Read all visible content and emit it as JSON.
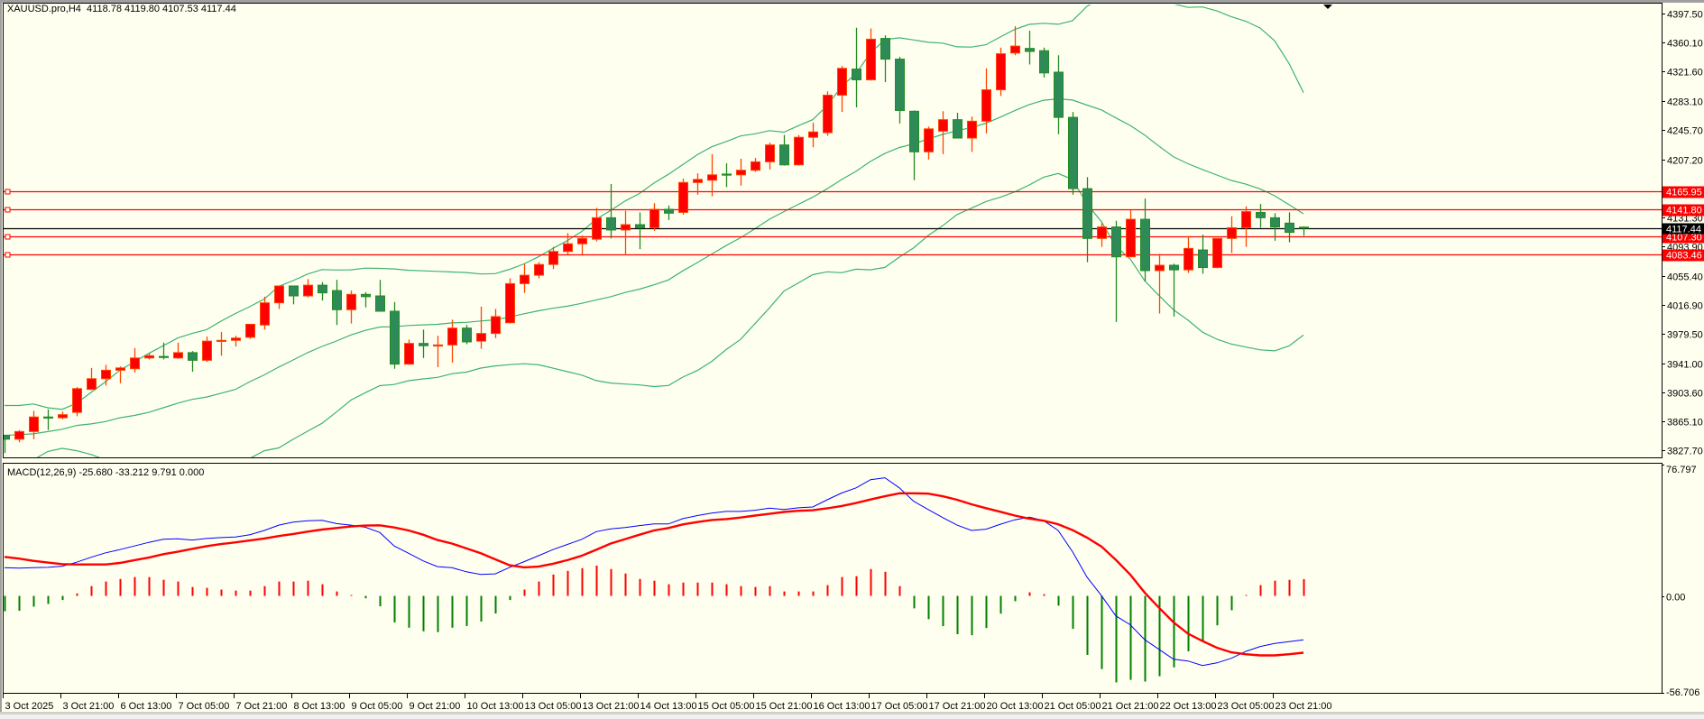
{
  "header": {
    "symbol": "XAUUSD.pro,H4",
    "ohlc": "4118.78 4119.80 4107.53 4117.44"
  },
  "macd_header": "MACD(12,26,9) -25.680 -33.212 9.791 0.000",
  "colors": {
    "background": "#fffff0",
    "bull_body": "#ff0000",
    "bull_outline": "#ff4500",
    "bear_body": "#2e8b57",
    "bear_outline": "#228b22",
    "bollinger": "#3cb371",
    "hline": "#ff0000",
    "current_line": "#000000",
    "macd_main": "#0000ff",
    "macd_signal": "#ff0000",
    "hist_up": "#ff0000",
    "hist_down": "#008000"
  },
  "chart_data": [
    {
      "type": "candlestick",
      "title": "XAUUSD.pro,H4",
      "ylim": [
        3827.7,
        4397.5
      ],
      "y_ticks": [
        "4397.50",
        "4360.10",
        "4321.60",
        "4283.10",
        "4245.70",
        "4207.20",
        "4131.30",
        "4093.90",
        "4055.40",
        "4016.90",
        "3979.50",
        "3941.00",
        "3903.60",
        "3865.10",
        "3827.70"
      ],
      "x_tick_labels": [
        "3 Oct 2025",
        "3 Oct 21:00",
        "6 Oct 13:00",
        "7 Oct 05:00",
        "7 Oct 21:00",
        "8 Oct 13:00",
        "9 Oct 05:00",
        "9 Oct 21:00",
        "10 Oct 13:00",
        "13 Oct 05:00",
        "13 Oct 21:00",
        "14 Oct 13:00",
        "15 Oct 05:00",
        "15 Oct 21:00",
        "16 Oct 13:00",
        "17 Oct 05:00",
        "17 Oct 21:00",
        "20 Oct 13:00",
        "21 Oct 05:00",
        "21 Oct 21:00",
        "22 Oct 13:00",
        "23 Oct 05:00",
        "23 Oct 21:00"
      ],
      "x_tick_every_bars": 4,
      "ohlc": [
        [
          3847,
          3848,
          3824,
          3842
        ],
        [
          3842,
          3854,
          3838,
          3852
        ],
        [
          3852,
          3879,
          3842,
          3871
        ],
        [
          3871,
          3881,
          3854,
          3870
        ],
        [
          3870,
          3878,
          3868,
          3874
        ],
        [
          3877,
          3910,
          3872,
          3908
        ],
        [
          3907,
          3935,
          3906,
          3921
        ],
        [
          3921,
          3939,
          3912,
          3932
        ],
        [
          3932,
          3937,
          3915,
          3935
        ],
        [
          3934,
          3961,
          3929,
          3948
        ],
        [
          3948,
          3954,
          3946,
          3951
        ],
        [
          3950,
          3968,
          3946,
          3949
        ],
        [
          3948,
          3968,
          3947,
          3955
        ],
        [
          3955,
          3957,
          3930,
          3945
        ],
        [
          3945,
          3976,
          3943,
          3970
        ],
        [
          3970,
          3982,
          3951,
          3971
        ],
        [
          3971,
          3977,
          3963,
          3974
        ],
        [
          3975,
          3992,
          3973,
          3992
        ],
        [
          3991,
          4028,
          3985,
          4020
        ],
        [
          4020,
          4042,
          4012,
          4042
        ],
        [
          4042,
          4042,
          4018,
          4029
        ],
        [
          4029,
          4051,
          4027,
          4043
        ],
        [
          4043,
          4047,
          4023,
          4033
        ],
        [
          4036,
          4050,
          3991,
          4011
        ],
        [
          4011,
          4036,
          3993,
          4031
        ],
        [
          4031,
          4034,
          4014,
          4028
        ],
        [
          4029,
          4050,
          4009,
          4009
        ],
        [
          4009,
          4021,
          3934,
          3940
        ],
        [
          3940,
          3972,
          3939,
          3967
        ],
        [
          3967,
          3985,
          3948,
          3964
        ],
        [
          3964,
          3977,
          3936,
          3965
        ],
        [
          3965,
          3998,
          3942,
          3987
        ],
        [
          3987,
          3991,
          3966,
          3969
        ],
        [
          3970,
          4015,
          3960,
          3980
        ],
        [
          3980,
          4012,
          3974,
          4002
        ],
        [
          3994,
          4052,
          3993,
          4045
        ],
        [
          4045,
          4071,
          4033,
          4056
        ],
        [
          4056,
          4073,
          4052,
          4070
        ],
        [
          4070,
          4093,
          4064,
          4087
        ],
        [
          4087,
          4111,
          4083,
          4097
        ],
        [
          4097,
          4108,
          4083,
          4104
        ],
        [
          4103,
          4144,
          4100,
          4131
        ],
        [
          4131,
          4175,
          4104,
          4115
        ],
        [
          4115,
          4140,
          4082,
          4122
        ],
        [
          4122,
          4138,
          4090,
          4118
        ],
        [
          4118,
          4150,
          4114,
          4142
        ],
        [
          4142,
          4147,
          4128,
          4137
        ],
        [
          4138,
          4182,
          4135,
          4177
        ],
        [
          4177,
          4189,
          4161,
          4181
        ],
        [
          4180,
          4214,
          4159,
          4187
        ],
        [
          4188,
          4202,
          4171,
          4187
        ],
        [
          4187,
          4208,
          4173,
          4193
        ],
        [
          4193,
          4209,
          4191,
          4204
        ],
        [
          4204,
          4229,
          4194,
          4226
        ],
        [
          4226,
          4239,
          4199,
          4200
        ],
        [
          4200,
          4239,
          4199,
          4236
        ],
        [
          4236,
          4255,
          4223,
          4243
        ],
        [
          4242,
          4296,
          4238,
          4291
        ],
        [
          4291,
          4329,
          4269,
          4326
        ],
        [
          4325,
          4379,
          4275,
          4311
        ],
        [
          4311,
          4378,
          4310,
          4364
        ],
        [
          4365,
          4369,
          4308,
          4338
        ],
        [
          4338,
          4341,
          4254,
          4271
        ],
        [
          4270,
          4271,
          4180,
          4217
        ],
        [
          4217,
          4250,
          4207,
          4247
        ],
        [
          4244,
          4270,
          4214,
          4259
        ],
        [
          4259,
          4268,
          4235,
          4235
        ],
        [
          4235,
          4263,
          4217,
          4257
        ],
        [
          4257,
          4326,
          4241,
          4298
        ],
        [
          4298,
          4353,
          4290,
          4345
        ],
        [
          4346,
          4381,
          4343,
          4355
        ],
        [
          4352,
          4375,
          4331,
          4348
        ],
        [
          4349,
          4353,
          4314,
          4320
        ],
        [
          4321,
          4343,
          4240,
          4262
        ],
        [
          4262,
          4269,
          4161,
          4169
        ],
        [
          4169,
          4184,
          4073,
          4104
        ],
        [
          4104,
          4124,
          4093,
          4119
        ],
        [
          4119,
          4127,
          3995,
          4080
        ],
        [
          4080,
          4141,
          4080,
          4129
        ],
        [
          4129,
          4156,
          4048,
          4062
        ],
        [
          4062,
          4084,
          4006,
          4069
        ],
        [
          4069,
          4071,
          4002,
          4063
        ],
        [
          4063,
          4107,
          4059,
          4091
        ],
        [
          4089,
          4109,
          4058,
          4066
        ],
        [
          4066,
          4104,
          4065,
          4104
        ],
        [
          4104,
          4133,
          4085,
          4118
        ],
        [
          4118,
          4146,
          4093,
          4139
        ],
        [
          4138,
          4149,
          4118,
          4131
        ],
        [
          4131,
          4137,
          4101,
          4119
        ],
        [
          4124,
          4138,
          4099,
          4112
        ],
        [
          4118.78,
          4119.8,
          4107.53,
          4117.44
        ]
      ],
      "bollinger": {
        "period": 20,
        "deviation": 2,
        "first_bars_upper": [
          3886,
          3886,
          3888,
          3883,
          3881,
          3889,
          3903,
          3917,
          3932,
          3943,
          3954,
          3964,
          3974,
          3980,
          3985,
          3996,
          4006,
          4015,
          4025
        ],
        "first_bars_middle": [
          3847,
          3848,
          3849,
          3852,
          3855,
          3860,
          3862,
          3865,
          3870,
          3873,
          3877,
          3883,
          3889,
          3894,
          3897,
          3902,
          3907,
          3917,
          3926
        ],
        "first_bars_lower": [
          3800,
          3806,
          3815,
          3826,
          3830,
          3827,
          3822,
          3815,
          3808,
          3801,
          3800,
          3799,
          3804,
          3808,
          3810,
          3808,
          3808,
          3817,
          3827
        ]
      },
      "horizontal_lines": [
        {
          "price": "4165.95",
          "color": "#ff0000"
        },
        {
          "price": "4141.80",
          "color": "#ff0000"
        },
        {
          "price": "4107.30",
          "color": "#ff0000"
        },
        {
          "price": "4083.46",
          "color": "#ff0000"
        }
      ],
      "current_price": "4117.44"
    },
    {
      "type": "line",
      "title": "MACD(12,26,9)",
      "ylim": [
        -56.706,
        76.797
      ],
      "y_ticks": [
        "76.797",
        "0.00",
        "-56.706"
      ],
      "series": [
        {
          "name": "main",
          "values": [
            16.5,
            16.2,
            16.5,
            16.7,
            17.4,
            19.7,
            22.6,
            25.2,
            27.1,
            29.2,
            31.3,
            33.1,
            33.4,
            32.7,
            33.6,
            34.1,
            34.5,
            35.8,
            38.3,
            41.4,
            43.2,
            44.0,
            44.2,
            42.3,
            41.4,
            40.2,
            37.1,
            29.2,
            24.9,
            20.5,
            17.1,
            16.5,
            14.1,
            12.5,
            12.9,
            16.7,
            20.0,
            23.5,
            27.1,
            30.1,
            33.1,
            37.6,
            39.2,
            40.0,
            41.1,
            42.1,
            42.1,
            45.2,
            47.0,
            48.4,
            49.4,
            49.4,
            50.1,
            51.3,
            50.5,
            51.5,
            52.0,
            56.2,
            60.2,
            63.2,
            68.0,
            69.1,
            63.2,
            55.3,
            50.5,
            45.8,
            41.4,
            38.3,
            39.0,
            41.9,
            44.5,
            46.1,
            44.0,
            38.3,
            25.8,
            11.0,
            0.2,
            -11.7,
            -16.9,
            -25.6,
            -31.3,
            -37.1,
            -38.1,
            -40.7,
            -39.2,
            -36.5,
            -32.5,
            -29.6,
            -27.8,
            -26.8,
            -25.68
          ]
        },
        {
          "name": "signal",
          "values": [
            22.8,
            21.8,
            20.5,
            19.5,
            18.6,
            18.4,
            18.4,
            18.4,
            19.3,
            20.9,
            22.4,
            24.4,
            25.8,
            27.5,
            29.1,
            30.3,
            31.3,
            32.4,
            33.6,
            35.0,
            36.2,
            37.6,
            38.8,
            39.7,
            40.6,
            41.1,
            41.3,
            40.0,
            38.3,
            35.8,
            32.7,
            30.6,
            27.8,
            24.9,
            21.4,
            17.9,
            16.7,
            17.1,
            18.8,
            20.9,
            23.5,
            27.0,
            30.6,
            33.2,
            35.8,
            38.3,
            39.7,
            41.8,
            43.2,
            44.4,
            44.9,
            45.8,
            47.0,
            48.0,
            49.1,
            49.8,
            50.1,
            51.2,
            52.6,
            54.3,
            56.4,
            58.3,
            60.0,
            60.0,
            59.8,
            58.3,
            56.2,
            53.6,
            51.3,
            49.2,
            47.0,
            45.2,
            44.0,
            41.9,
            38.5,
            34.1,
            28.9,
            21.1,
            12.4,
            1.9,
            -7.0,
            -15.5,
            -22.1,
            -26.4,
            -30.3,
            -33.0,
            -34.1,
            -34.8,
            -34.8,
            -34.1,
            -33.212
          ]
        },
        {
          "name": "histogram",
          "values": [
            -9.0,
            -8.7,
            -6.3,
            -4.7,
            -2.4,
            1.4,
            5.7,
            8.4,
            9.9,
            11.0,
            11.0,
            9.4,
            8.4,
            5.2,
            4.7,
            3.7,
            3.1,
            3.1,
            5.7,
            8.4,
            8.4,
            8.9,
            6.8,
            2.6,
            0.5,
            -1.4,
            -6.1,
            -15.5,
            -18.6,
            -20.7,
            -21.2,
            -18.6,
            -17.6,
            -15.0,
            -10.3,
            -2.4,
            3.7,
            8.4,
            12.5,
            14.6,
            16.2,
            17.7,
            15.7,
            13.1,
            9.9,
            8.9,
            6.8,
            7.8,
            7.8,
            7.8,
            6.8,
            5.7,
            5.2,
            5.7,
            2.6,
            2.6,
            2.6,
            6.3,
            11.0,
            11.5,
            15.7,
            14.1,
            5.7,
            -7.3,
            -13.6,
            -17.7,
            -22.4,
            -23.0,
            -18.8,
            -10.4,
            -3.1,
            2.1,
            1.0,
            -5.7,
            -19.3,
            -34.5,
            -42.8,
            -50.6,
            -49.1,
            -50.1,
            -47.0,
            -41.8,
            -32.4,
            -26.1,
            -17.2,
            -8.4,
            0.5,
            6.3,
            8.9,
            9.4,
            9.791
          ]
        }
      ]
    }
  ]
}
